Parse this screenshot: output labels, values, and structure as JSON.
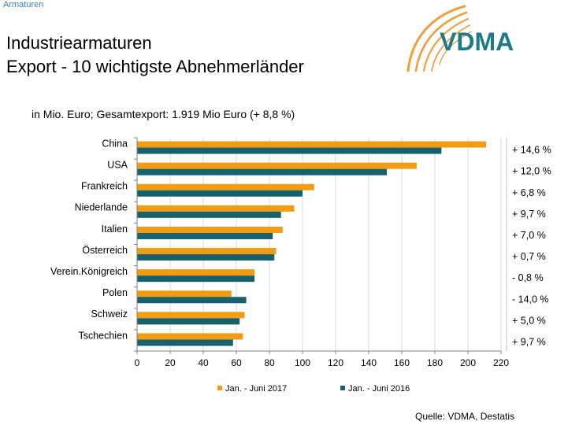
{
  "header": {
    "section": "Armaturen",
    "title_line1": "Industriearmaturen",
    "title_line2": "Export - 10 wichtigste Abnehmerländer",
    "logo_text": "VDMA"
  },
  "footer": {
    "source": "Quelle: VDMA, Destatis"
  },
  "colors": {
    "series_2017": "#f39c12",
    "series_2016": "#17606e",
    "logo_orange": "#f0a040",
    "logo_teal": "#1d7a87"
  },
  "chart_data": {
    "type": "bar",
    "orientation": "horizontal",
    "subtitle": "in Mio. Euro; Gesamtexport: 1.919 Mio Euro (+ 8,8 %)",
    "categories": [
      "China",
      "USA",
      "Frankreich",
      "Niederlande",
      "Italien",
      "Österreich",
      "Verein.Königreich",
      "Polen",
      "Schweiz",
      "Tschechien"
    ],
    "series": [
      {
        "name": "Jan. - Juni 2017",
        "values": [
          211,
          169,
          107,
          95,
          88,
          84,
          71,
          57,
          65,
          64
        ]
      },
      {
        "name": "Jan. - Juni 2016",
        "values": [
          184,
          151,
          100,
          87,
          82,
          83,
          71,
          66,
          62,
          58
        ]
      }
    ],
    "changes": [
      "+ 14,6 %",
      "+ 12,0 %",
      "+ 6,8 %",
      "+  9,7 %",
      "+ 7,0 %",
      "+ 0,7 %",
      "- 0,8 %",
      "- 14,0 %",
      "+ 5,0 %",
      "+ 9,7 %"
    ],
    "xlim": [
      0,
      220
    ],
    "xticks": [
      0,
      20,
      40,
      60,
      80,
      100,
      120,
      140,
      160,
      180,
      200,
      220
    ],
    "grid": true,
    "legend": "bottom"
  }
}
